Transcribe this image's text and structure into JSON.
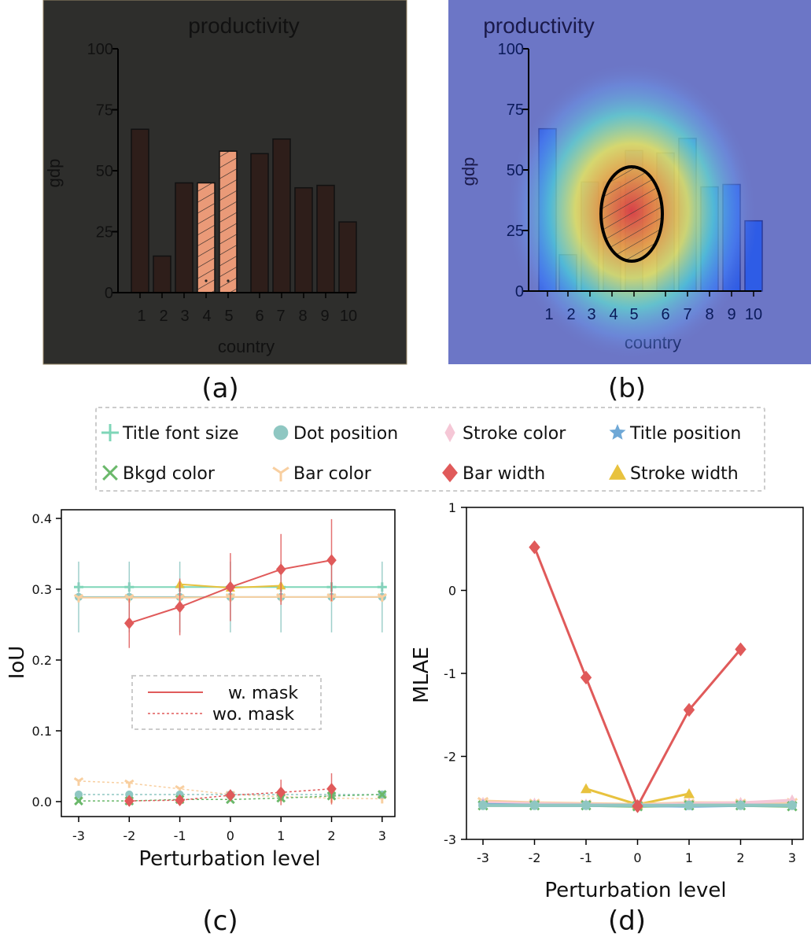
{
  "panels": {
    "a_label": "(a)",
    "b_label": "(b)",
    "c_label": "(c)",
    "d_label": "(d)"
  },
  "legend": {
    "items": [
      {
        "label": "Title font size",
        "marker": "plus",
        "color": "#7fd6b8"
      },
      {
        "label": "Dot position",
        "marker": "circle",
        "color": "#8fc7c2"
      },
      {
        "label": "Stroke color",
        "marker": "thin-diamond",
        "color": "#f5c7d6"
      },
      {
        "label": "Title position",
        "marker": "star",
        "color": "#6fa8d6"
      },
      {
        "label": "Bkgd color",
        "marker": "x",
        "color": "#6ab86a"
      },
      {
        "label": "Bar color",
        "marker": "tri-down",
        "color": "#f8cfa0"
      },
      {
        "label": "Bar width",
        "marker": "diamond",
        "color": "#e05a5a"
      },
      {
        "label": "Stroke width",
        "marker": "triangle",
        "color": "#e8c23e"
      }
    ]
  },
  "chart_data": [
    {
      "id": "a",
      "type": "bar",
      "title": "productivity",
      "xlabel": "country",
      "ylabel": "gdp",
      "categories": [
        "1",
        "2",
        "3",
        "4",
        "5",
        "6",
        "7",
        "8",
        "9",
        "10"
      ],
      "values": [
        67,
        15,
        45,
        45,
        58,
        57,
        63,
        43,
        44,
        29
      ],
      "highlighted": [
        "4",
        "5"
      ],
      "yticks": [
        0,
        25,
        50,
        75,
        100
      ],
      "ylim": [
        0,
        100
      ],
      "background": "#2e2e2c",
      "bar_color": "#2e1e1a",
      "highlight_color": "#ea9a78"
    },
    {
      "id": "b",
      "type": "bar",
      "title": "productivity",
      "xlabel": "country",
      "ylabel": "gdp",
      "categories": [
        "1",
        "2",
        "3",
        "4",
        "5",
        "6",
        "7",
        "8",
        "9",
        "10"
      ],
      "values": [
        67,
        15,
        45,
        45,
        58,
        57,
        63,
        43,
        44,
        29
      ],
      "yticks": [
        0,
        25,
        50,
        75,
        100
      ],
      "ylim": [
        0,
        100
      ],
      "overlay": "saliency heatmap centered on bars 4 and 5"
    },
    {
      "id": "c",
      "type": "line",
      "xlabel": "Perturbation level",
      "ylabel": "IoU",
      "x": [
        -3,
        -2,
        -1,
        0,
        1,
        2,
        3
      ],
      "ylim": [
        0,
        0.4
      ],
      "yticks": [
        0.0,
        0.1,
        0.2,
        0.3,
        0.4
      ],
      "inner_legend": [
        "w. mask",
        "wo. mask"
      ],
      "series": [
        {
          "name": "Title font size",
          "mask": true,
          "values": [
            0.303,
            0.303,
            0.303,
            0.303,
            0.303,
            0.303,
            0.303
          ]
        },
        {
          "name": "Dot position",
          "mask": true,
          "values": [
            0.289,
            0.289,
            0.289,
            0.289,
            0.289,
            0.289,
            0.289
          ],
          "err": 0.05
        },
        {
          "name": "Bar color",
          "mask": true,
          "values": [
            0.288,
            0.288,
            0.288,
            0.289,
            0.289,
            0.289,
            0.289
          ]
        },
        {
          "name": "Stroke width",
          "mask": true,
          "values": [
            null,
            null,
            0.307,
            0.302,
            0.305,
            null,
            null
          ]
        },
        {
          "name": "Bar width",
          "mask": true,
          "values": [
            null,
            0.252,
            0.275,
            0.303,
            0.328,
            0.341,
            null
          ],
          "err": [
            0,
            0.035,
            0.04,
            0.048,
            0.05,
            0.058,
            0
          ]
        },
        {
          "name": "Bar color",
          "mask": false,
          "values": [
            0.029,
            0.026,
            0.018,
            0.01,
            0.007,
            0.005,
            0.004
          ]
        },
        {
          "name": "Dot position",
          "mask": false,
          "values": [
            0.01,
            0.01,
            0.01,
            0.01,
            0.01,
            0.01,
            0.01
          ]
        },
        {
          "name": "Bkgd color",
          "mask": false,
          "values": [
            0.001,
            0.001,
            0.003,
            0.003,
            0.005,
            0.008,
            0.01
          ]
        },
        {
          "name": "Bar width",
          "mask": false,
          "values": [
            null,
            0.001,
            0.002,
            0.009,
            0.013,
            0.018,
            null
          ],
          "err": [
            0,
            0.005,
            0.006,
            0.008,
            0.018,
            0.022,
            0
          ]
        }
      ]
    },
    {
      "id": "d",
      "type": "line",
      "xlabel": "Perturbation level",
      "ylabel": "MLAE",
      "x": [
        -3,
        -2,
        -1,
        0,
        1,
        2,
        3
      ],
      "ylim": [
        -3,
        1
      ],
      "yticks": [
        -3,
        -2,
        -1,
        0,
        1
      ],
      "series": [
        {
          "name": "Bar width",
          "values": [
            null,
            0.52,
            -1.05,
            -2.6,
            -1.44,
            -0.71,
            null
          ]
        },
        {
          "name": "Stroke width",
          "values": [
            null,
            null,
            -2.39,
            -2.58,
            -2.45,
            null,
            null
          ]
        },
        {
          "name": "Bar color",
          "values": [
            -2.54,
            -2.56,
            -2.57,
            -2.58,
            -2.56,
            -2.56,
            -2.55
          ]
        },
        {
          "name": "Stroke color",
          "values": [
            -2.56,
            -2.57,
            -2.58,
            -2.59,
            -2.57,
            -2.56,
            -2.53
          ]
        },
        {
          "name": "Bkgd color",
          "values": [
            -2.59,
            -2.59,
            -2.59,
            -2.6,
            -2.59,
            -2.59,
            -2.6
          ]
        },
        {
          "name": "Title position",
          "values": [
            -2.58,
            -2.59,
            -2.59,
            -2.59,
            -2.6,
            -2.59,
            -2.59
          ]
        },
        {
          "name": "Dot position",
          "values": [
            -2.59,
            -2.59,
            -2.59,
            -2.59,
            -2.59,
            -2.59,
            -2.59
          ]
        }
      ]
    }
  ]
}
